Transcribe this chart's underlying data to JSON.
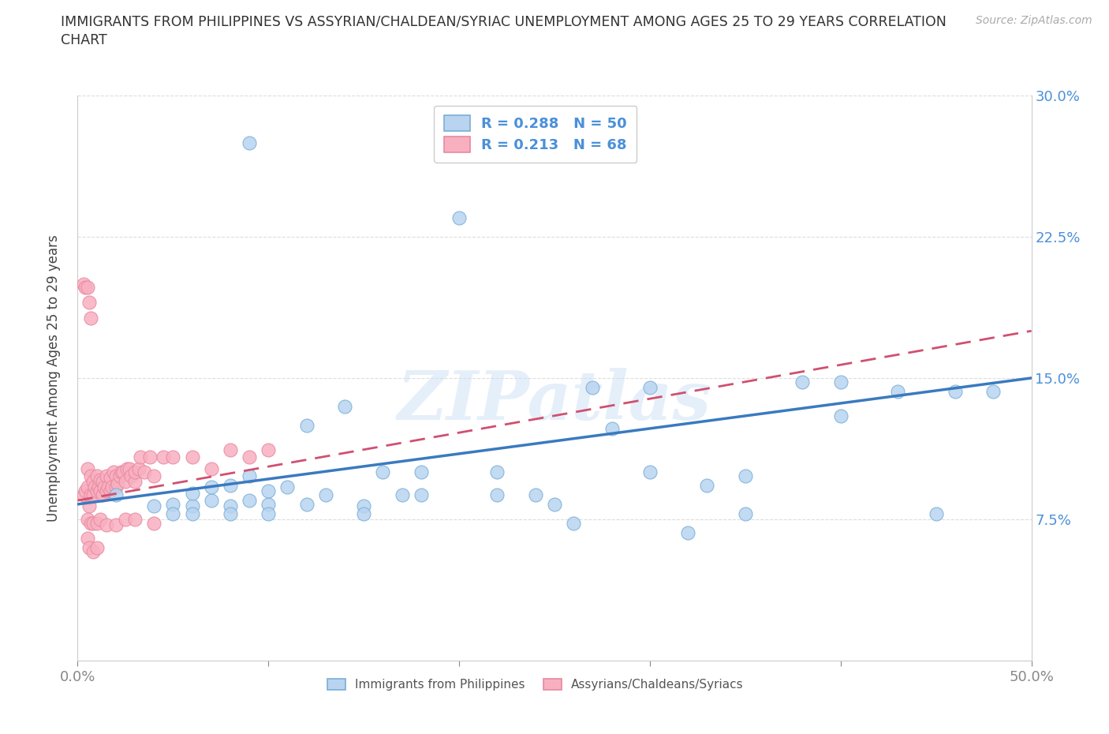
{
  "title_line1": "IMMIGRANTS FROM PHILIPPINES VS ASSYRIAN/CHALDEAN/SYRIAC UNEMPLOYMENT AMONG AGES 25 TO 29 YEARS CORRELATION",
  "title_line2": "CHART",
  "source": "Source: ZipAtlas.com",
  "ylabel": "Unemployment Among Ages 25 to 29 years",
  "xlim": [
    0.0,
    0.5
  ],
  "ylim": [
    0.0,
    0.3
  ],
  "xticks": [
    0.0,
    0.1,
    0.2,
    0.3,
    0.4,
    0.5
  ],
  "yticks": [
    0.0,
    0.075,
    0.15,
    0.225,
    0.3
  ],
  "blue_color": "#b8d4f0",
  "blue_edge": "#7aaed6",
  "pink_color": "#f8b0c0",
  "pink_edge": "#e888a0",
  "blue_line_color": "#3a7abf",
  "pink_line_color": "#d05070",
  "R_blue": 0.288,
  "N_blue": 50,
  "R_pink": 0.213,
  "N_pink": 68,
  "legend_label_blue": "Immigrants from Philippines",
  "legend_label_pink": "Assyrians/Chaldeans/Syriacs",
  "watermark": "ZIPatlas",
  "label_color": "#4a90d9",
  "title_color": "#333333",
  "source_color": "#aaaaaa",
  "grid_color": "#dddddd",
  "spine_color": "#cccccc",
  "blue_scatter_x": [
    0.02,
    0.04,
    0.05,
    0.06,
    0.06,
    0.07,
    0.07,
    0.08,
    0.08,
    0.09,
    0.09,
    0.1,
    0.1,
    0.11,
    0.12,
    0.13,
    0.14,
    0.15,
    0.16,
    0.17,
    0.18,
    0.2,
    0.22,
    0.24,
    0.25,
    0.26,
    0.28,
    0.3,
    0.32,
    0.33,
    0.35,
    0.38,
    0.4,
    0.43,
    0.46,
    0.48,
    0.05,
    0.06,
    0.08,
    0.09,
    0.1,
    0.12,
    0.15,
    0.18,
    0.22,
    0.27,
    0.3,
    0.35,
    0.4,
    0.45
  ],
  "blue_scatter_y": [
    0.088,
    0.082,
    0.083,
    0.082,
    0.089,
    0.085,
    0.092,
    0.082,
    0.093,
    0.098,
    0.085,
    0.083,
    0.09,
    0.092,
    0.125,
    0.088,
    0.135,
    0.082,
    0.1,
    0.088,
    0.1,
    0.235,
    0.1,
    0.088,
    0.083,
    0.073,
    0.123,
    0.145,
    0.068,
    0.093,
    0.098,
    0.148,
    0.148,
    0.143,
    0.143,
    0.143,
    0.078,
    0.078,
    0.078,
    0.275,
    0.078,
    0.083,
    0.078,
    0.088,
    0.088,
    0.145,
    0.1,
    0.078,
    0.13,
    0.078
  ],
  "pink_scatter_x": [
    0.003,
    0.004,
    0.005,
    0.005,
    0.006,
    0.007,
    0.007,
    0.008,
    0.008,
    0.009,
    0.01,
    0.01,
    0.011,
    0.012,
    0.012,
    0.013,
    0.013,
    0.014,
    0.015,
    0.015,
    0.016,
    0.017,
    0.017,
    0.018,
    0.019,
    0.02,
    0.02,
    0.021,
    0.022,
    0.023,
    0.024,
    0.025,
    0.026,
    0.027,
    0.028,
    0.03,
    0.03,
    0.032,
    0.033,
    0.035,
    0.038,
    0.04,
    0.045,
    0.05,
    0.06,
    0.07,
    0.08,
    0.09,
    0.1,
    0.005,
    0.007,
    0.008,
    0.01,
    0.012,
    0.015,
    0.02,
    0.025,
    0.03,
    0.04,
    0.005,
    0.006,
    0.008,
    0.01,
    0.003,
    0.004,
    0.005,
    0.006,
    0.007
  ],
  "pink_scatter_y": [
    0.088,
    0.09,
    0.092,
    0.102,
    0.082,
    0.088,
    0.098,
    0.088,
    0.095,
    0.092,
    0.09,
    0.098,
    0.092,
    0.09,
    0.096,
    0.088,
    0.095,
    0.092,
    0.09,
    0.098,
    0.092,
    0.09,
    0.097,
    0.092,
    0.1,
    0.092,
    0.098,
    0.094,
    0.098,
    0.1,
    0.1,
    0.095,
    0.102,
    0.102,
    0.098,
    0.095,
    0.1,
    0.102,
    0.108,
    0.1,
    0.108,
    0.098,
    0.108,
    0.108,
    0.108,
    0.102,
    0.112,
    0.108,
    0.112,
    0.075,
    0.073,
    0.073,
    0.073,
    0.075,
    0.072,
    0.072,
    0.075,
    0.075,
    0.073,
    0.065,
    0.06,
    0.058,
    0.06,
    0.2,
    0.198,
    0.198,
    0.19,
    0.182
  ]
}
